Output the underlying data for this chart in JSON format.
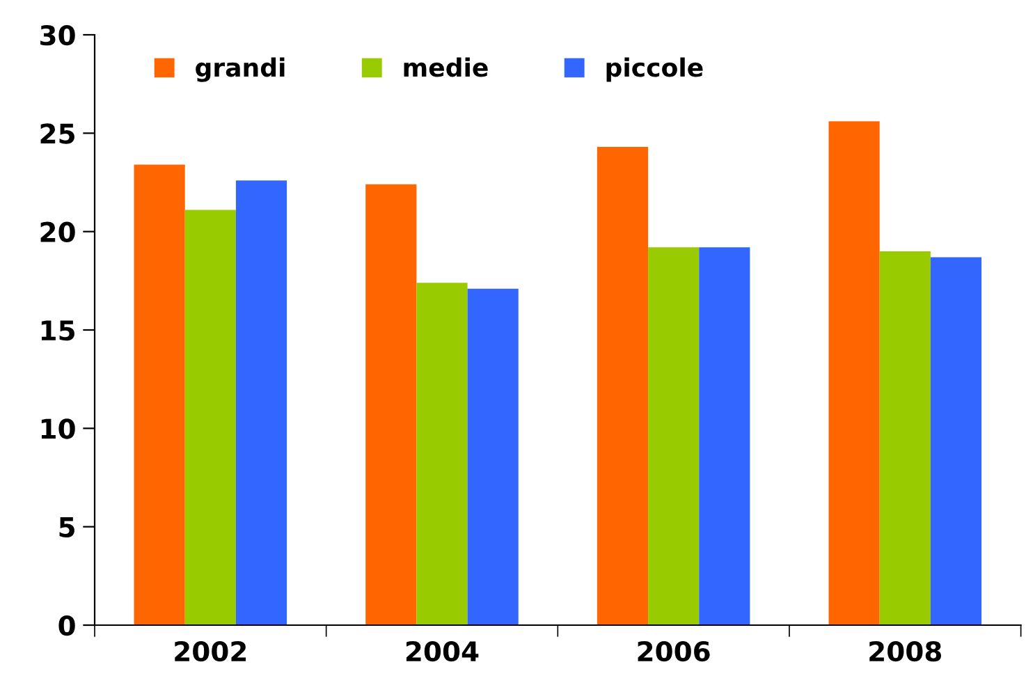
{
  "chart_data": {
    "type": "bar",
    "categories": [
      "2002",
      "2004",
      "2006",
      "2008"
    ],
    "series": [
      {
        "name": "grandi",
        "color": "#ff6600",
        "values": [
          23.4,
          22.4,
          24.3,
          25.6
        ]
      },
      {
        "name": "medie",
        "color": "#99cc00",
        "values": [
          21.1,
          17.4,
          19.2,
          19.0
        ]
      },
      {
        "name": "piccole",
        "color": "#3366ff",
        "values": [
          22.6,
          17.1,
          19.2,
          18.7
        ]
      }
    ],
    "ylim": [
      0,
      30
    ],
    "yticks": [
      0,
      5,
      10,
      15,
      20,
      25,
      30
    ],
    "grid": false,
    "legend": "top left"
  }
}
